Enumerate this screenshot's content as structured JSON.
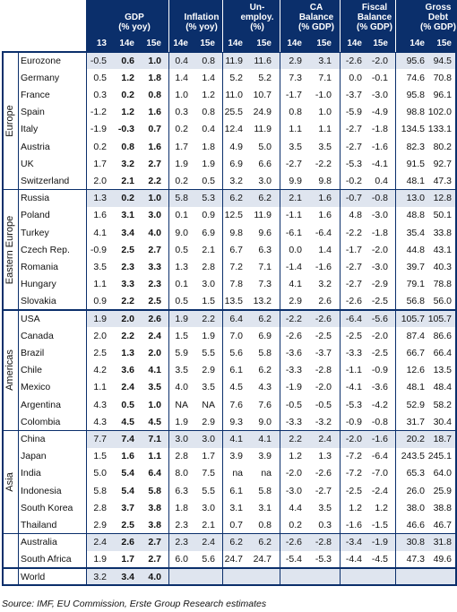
{
  "header": {
    "metrics": [
      {
        "label_lines": [
          "GDP",
          "(% yoy)"
        ],
        "cols": [
          "13",
          "14e",
          "15e"
        ]
      },
      {
        "label_lines": [
          "Inflation",
          "(% yoy)"
        ],
        "cols": [
          "14e",
          "15e"
        ]
      },
      {
        "label_lines": [
          "Un-",
          "employ.",
          "(%)"
        ],
        "cols": [
          "14e",
          "15e"
        ]
      },
      {
        "label_lines": [
          "CA",
          "Balance",
          "(% GDP)"
        ],
        "cols": [
          "14e",
          "15e"
        ]
      },
      {
        "label_lines": [
          "Fiscal",
          "Balance",
          "(% GDP)"
        ],
        "cols": [
          "14e",
          "15e"
        ]
      },
      {
        "label_lines": [
          "Gross",
          "Debt",
          "(% GDP)"
        ],
        "cols": [
          "14e",
          "15e"
        ]
      }
    ]
  },
  "groups": [
    {
      "name": "Europe",
      "rows": [
        {
          "country": "Eurozone",
          "values": [
            "-0.5",
            "0.6",
            "1.0",
            "0.4",
            "0.8",
            "11.9",
            "11.6",
            "2.9",
            "3.1",
            "-2.6",
            "-2.0",
            "95.6",
            "94.5"
          ]
        },
        {
          "country": "Germany",
          "values": [
            "0.5",
            "1.2",
            "1.8",
            "1.4",
            "1.4",
            "5.2",
            "5.2",
            "7.3",
            "7.1",
            "0.0",
            "-0.1",
            "74.6",
            "70.8"
          ]
        },
        {
          "country": "France",
          "values": [
            "0.3",
            "0.2",
            "0.8",
            "1.0",
            "1.2",
            "11.0",
            "10.7",
            "-1.7",
            "-1.0",
            "-3.7",
            "-3.0",
            "95.8",
            "96.1"
          ]
        },
        {
          "country": "Spain",
          "values": [
            "-1.2",
            "1.2",
            "1.6",
            "0.3",
            "0.8",
            "25.5",
            "24.9",
            "0.8",
            "1.0",
            "-5.9",
            "-4.9",
            "98.8",
            "102.0"
          ]
        },
        {
          "country": "Italy",
          "values": [
            "-1.9",
            "-0.3",
            "0.7",
            "0.2",
            "0.4",
            "12.4",
            "11.9",
            "1.1",
            "1.1",
            "-2.7",
            "-1.8",
            "134.5",
            "133.1"
          ]
        },
        {
          "country": "Austria",
          "values": [
            "0.2",
            "0.8",
            "1.6",
            "1.7",
            "1.8",
            "4.9",
            "5.0",
            "3.5",
            "3.5",
            "-2.7",
            "-1.6",
            "82.3",
            "80.2"
          ]
        },
        {
          "country": "UK",
          "values": [
            "1.7",
            "3.2",
            "2.7",
            "1.9",
            "1.9",
            "6.9",
            "6.6",
            "-2.7",
            "-2.2",
            "-5.3",
            "-4.1",
            "91.5",
            "92.7"
          ]
        },
        {
          "country": "Switzerland",
          "values": [
            "2.0",
            "2.1",
            "2.2",
            "0.2",
            "0.5",
            "3.2",
            "3.0",
            "9.9",
            "9.8",
            "-0.2",
            "0.4",
            "48.1",
            "47.3"
          ]
        }
      ]
    },
    {
      "name": "Eastern Europe",
      "rows": [
        {
          "country": "Russia",
          "values": [
            "1.3",
            "0.2",
            "1.0",
            "5.8",
            "5.3",
            "6.2",
            "6.2",
            "2.1",
            "1.6",
            "-0.7",
            "-0.8",
            "13.0",
            "12.8"
          ]
        },
        {
          "country": "Poland",
          "values": [
            "1.6",
            "3.1",
            "3.0",
            "0.1",
            "0.9",
            "12.5",
            "11.9",
            "-1.1",
            "1.6",
            "4.8",
            "-3.0",
            "48.8",
            "50.1"
          ]
        },
        {
          "country": "Turkey",
          "values": [
            "4.1",
            "3.4",
            "4.0",
            "9.0",
            "6.9",
            "9.8",
            "9.6",
            "-6.1",
            "-6.4",
            "-2.2",
            "-1.8",
            "35.4",
            "33.8"
          ]
        },
        {
          "country": "Czech Rep.",
          "values": [
            "-0.9",
            "2.5",
            "2.7",
            "0.5",
            "2.1",
            "6.7",
            "6.3",
            "0.0",
            "1.4",
            "-1.7",
            "-2.0",
            "44.8",
            "43.1"
          ]
        },
        {
          "country": "Romania",
          "values": [
            "3.5",
            "2.3",
            "3.3",
            "1.3",
            "2.8",
            "7.2",
            "7.1",
            "-1.4",
            "-1.6",
            "-2.7",
            "-3.0",
            "39.7",
            "40.3"
          ]
        },
        {
          "country": "Hungary",
          "values": [
            "1.1",
            "3.3",
            "2.3",
            "0.1",
            "3.0",
            "7.8",
            "7.3",
            "4.1",
            "3.2",
            "-2.7",
            "-2.9",
            "79.1",
            "78.8"
          ]
        },
        {
          "country": "Slovakia",
          "values": [
            "0.9",
            "2.2",
            "2.5",
            "0.5",
            "1.5",
            "13.5",
            "13.2",
            "2.9",
            "2.6",
            "-2.6",
            "-2.5",
            "56.8",
            "56.0"
          ]
        }
      ]
    },
    {
      "name": "Americas",
      "rows": [
        {
          "country": "USA",
          "values": [
            "1.9",
            "2.0",
            "2.6",
            "1.9",
            "2.2",
            "6.4",
            "6.2",
            "-2.2",
            "-2.6",
            "-6.4",
            "-5.6",
            "105.7",
            "105.7"
          ]
        },
        {
          "country": "Canada",
          "values": [
            "2.0",
            "2.2",
            "2.4",
            "1.5",
            "1.9",
            "7.0",
            "6.9",
            "-2.6",
            "-2.5",
            "-2.5",
            "-2.0",
            "87.4",
            "86.6"
          ]
        },
        {
          "country": "Brazil",
          "values": [
            "2.5",
            "1.3",
            "2.0",
            "5.9",
            "5.5",
            "5.6",
            "5.8",
            "-3.6",
            "-3.7",
            "-3.3",
            "-2.5",
            "66.7",
            "66.4"
          ]
        },
        {
          "country": "Chile",
          "values": [
            "4.2",
            "3.6",
            "4.1",
            "3.5",
            "2.9",
            "6.1",
            "6.2",
            "-3.3",
            "-2.8",
            "-1.1",
            "-0.9",
            "12.6",
            "13.5"
          ]
        },
        {
          "country": "Mexico",
          "values": [
            "1.1",
            "2.4",
            "3.5",
            "4.0",
            "3.5",
            "4.5",
            "4.3",
            "-1.9",
            "-2.0",
            "-4.1",
            "-3.6",
            "48.1",
            "48.4"
          ]
        },
        {
          "country": "Argentina",
          "values": [
            "4.3",
            "0.5",
            "1.0",
            "NA",
            "NA",
            "7.6",
            "7.6",
            "-0.5",
            "-0.5",
            "-5.3",
            "-4.2",
            "52.9",
            "58.2"
          ]
        },
        {
          "country": "Colombia",
          "values": [
            "4.3",
            "4.5",
            "4.5",
            "1.9",
            "2.9",
            "9.3",
            "9.0",
            "-3.3",
            "-3.2",
            "-0.9",
            "-0.8",
            "31.7",
            "30.4"
          ]
        }
      ]
    },
    {
      "name": "Asia",
      "rows": [
        {
          "country": "China",
          "values": [
            "7.7",
            "7.4",
            "7.1",
            "3.0",
            "3.0",
            "4.1",
            "4.1",
            "2.2",
            "2.4",
            "-2.0",
            "-1.6",
            "20.2",
            "18.7"
          ]
        },
        {
          "country": "Japan",
          "values": [
            "1.5",
            "1.6",
            "1.1",
            "2.8",
            "1.7",
            "3.9",
            "3.9",
            "1.2",
            "1.3",
            "-7.2",
            "-6.4",
            "243.5",
            "245.1"
          ]
        },
        {
          "country": "India",
          "values": [
            "5.0",
            "5.4",
            "6.4",
            "8.0",
            "7.5",
            "na",
            "na",
            "-2.0",
            "-2.6",
            "-7.2",
            "-7.0",
            "65.3",
            "64.0"
          ]
        },
        {
          "country": "Indonesia",
          "values": [
            "5.8",
            "5.4",
            "5.8",
            "6.3",
            "5.5",
            "6.1",
            "5.8",
            "-3.0",
            "-2.7",
            "-2.5",
            "-2.4",
            "26.0",
            "25.9"
          ]
        },
        {
          "country": "South Korea",
          "values": [
            "2.8",
            "3.7",
            "3.8",
            "1.8",
            "3.0",
            "3.1",
            "3.1",
            "4.4",
            "3.5",
            "1.2",
            "1.2",
            "38.0",
            "38.8"
          ]
        },
        {
          "country": "Thailand",
          "values": [
            "2.9",
            "2.5",
            "3.8",
            "2.3",
            "2.1",
            "0.7",
            "0.8",
            "0.2",
            "0.3",
            "-1.6",
            "-1.5",
            "46.6",
            "46.7"
          ]
        }
      ]
    },
    {
      "name": "",
      "rows": [
        {
          "country": "Australia",
          "values": [
            "2.4",
            "2.6",
            "2.7",
            "2.3",
            "2.4",
            "6.2",
            "6.2",
            "-2.6",
            "-2.8",
            "-3.4",
            "-1.9",
            "30.8",
            "31.8"
          ]
        },
        {
          "country": "South Africa",
          "values": [
            "1.9",
            "1.7",
            "2.7",
            "6.0",
            "5.6",
            "24.7",
            "24.7",
            "-5.4",
            "-5.3",
            "-4.4",
            "-4.5",
            "47.3",
            "49.6"
          ]
        }
      ]
    },
    {
      "name": "",
      "rows": [
        {
          "country": "World",
          "values": [
            "3.2",
            "3.4",
            "4.0",
            "",
            "",
            "",
            "",
            "",
            "",
            "",
            "",
            "",
            ""
          ]
        }
      ]
    }
  ],
  "source": "Source: IMF, EU Commission, Erste Group Research estimates",
  "colors": {
    "header_bg": "#0b2f6b",
    "highlight_row": "#dfe5ef",
    "border": "#0b2f6b"
  }
}
